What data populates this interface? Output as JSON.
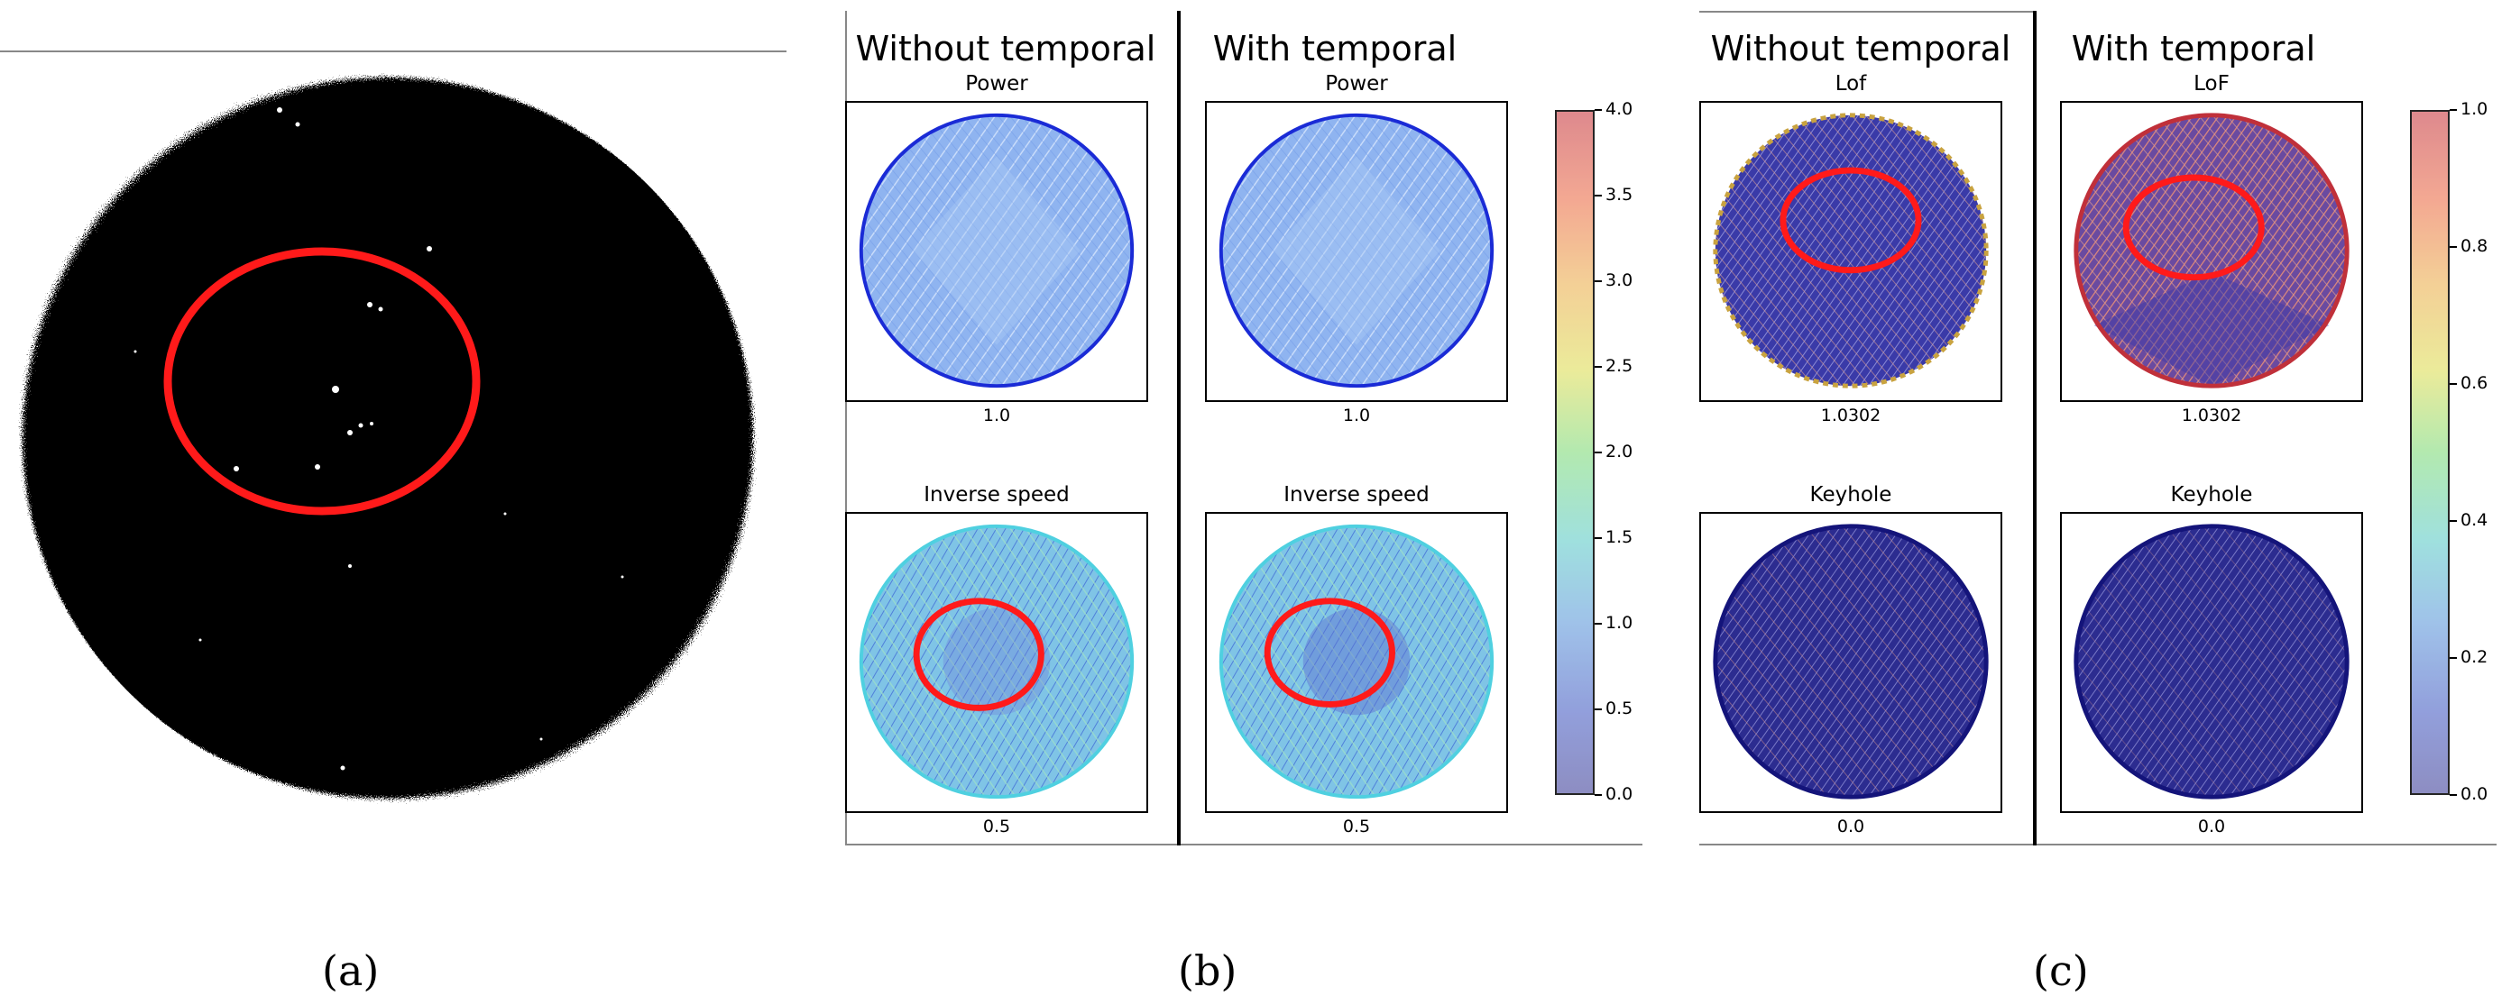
{
  "panel_a": {
    "caption": "(a)"
  },
  "panel_b": {
    "caption": "(b)",
    "col_left": "Without temporal",
    "col_right": "With temporal",
    "plots": [
      {
        "title": "Power",
        "value": "1.0"
      },
      {
        "title": "Power",
        "value": "1.0"
      },
      {
        "title": "Inverse speed",
        "value": "0.5"
      },
      {
        "title": "Inverse speed",
        "value": "0.5"
      }
    ],
    "colorbar_ticks": [
      "4.0",
      "3.5",
      "3.0",
      "2.5",
      "2.0",
      "1.5",
      "1.0",
      "0.5",
      "0.0"
    ]
  },
  "panel_c": {
    "caption": "(c)",
    "col_left": "Without temporal",
    "col_right": "With temporal",
    "plots": [
      {
        "title": "Lof",
        "value": "1.0302"
      },
      {
        "title": "LoF",
        "value": "1.0302"
      },
      {
        "title": "Keyhole",
        "value": "0.0"
      },
      {
        "title": "Keyhole",
        "value": "0.0"
      }
    ],
    "colorbar_ticks": [
      "1.0",
      "0.8",
      "0.6",
      "0.4",
      "0.2",
      "0.0"
    ]
  },
  "colors": {
    "highlight": "#ff1a1a",
    "ring_blue": "#1a2bd6",
    "ring_navy": "#14147a"
  }
}
